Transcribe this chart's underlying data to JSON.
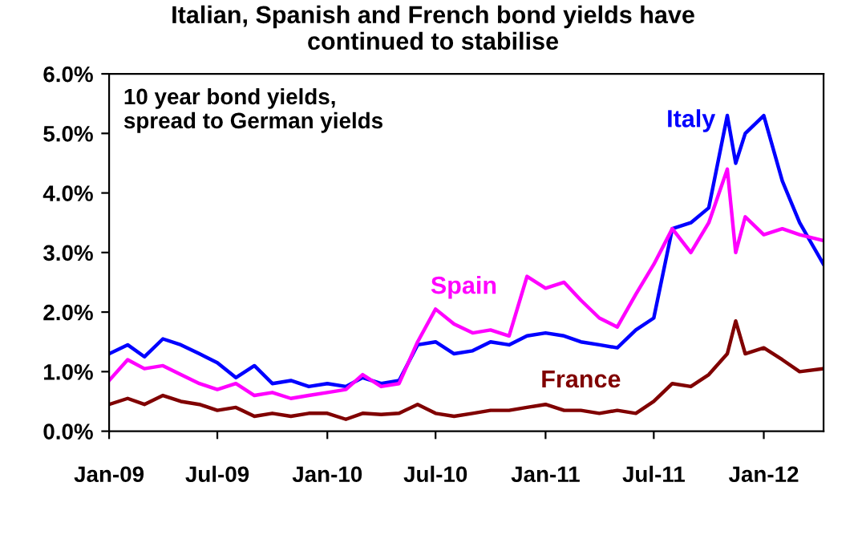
{
  "chart_data": {
    "type": "line",
    "title": "Italian, Spanish and French bond yields have\ncontinued to stabilise",
    "annotations": [
      "10 year bond yields,\nspread to German yields"
    ],
    "x": [
      "2009-01",
      "2009-02",
      "2009-03",
      "2009-04",
      "2009-05",
      "2009-06",
      "2009-07",
      "2009-08",
      "2009-09",
      "2009-10",
      "2009-11",
      "2009-12",
      "2010-01",
      "2010-02",
      "2010-03",
      "2010-04",
      "2010-05",
      "2010-06",
      "2010-07",
      "2010-08",
      "2010-09",
      "2010-10",
      "2010-11",
      "2010-12",
      "2011-01",
      "2011-02",
      "2011-03",
      "2011-04",
      "2011-05",
      "2011-06",
      "2011-07",
      "2011-08",
      "2011-09",
      "2011-10",
      "2011-11",
      "2011-11-15",
      "2011-12",
      "2012-01",
      "2012-02",
      "2012-03",
      "2012-04-10"
    ],
    "series": [
      {
        "name": "Italy",
        "color": "#0000ff",
        "values": [
          1.3,
          1.45,
          1.25,
          1.55,
          1.45,
          1.3,
          1.15,
          0.9,
          1.1,
          0.8,
          0.85,
          0.75,
          0.8,
          0.75,
          0.9,
          0.8,
          0.85,
          1.45,
          1.5,
          1.3,
          1.35,
          1.5,
          1.45,
          1.6,
          1.65,
          1.6,
          1.5,
          1.45,
          1.4,
          1.7,
          1.9,
          3.4,
          3.5,
          3.75,
          5.3,
          4.5,
          5.0,
          5.3,
          4.2,
          3.5,
          2.8
        ]
      },
      {
        "name": "Spain",
        "color": "#ff00ff",
        "values": [
          0.85,
          1.2,
          1.05,
          1.1,
          0.95,
          0.8,
          0.7,
          0.8,
          0.6,
          0.65,
          0.55,
          0.6,
          0.65,
          0.7,
          0.95,
          0.75,
          0.8,
          1.5,
          2.05,
          1.8,
          1.65,
          1.7,
          1.6,
          2.6,
          2.4,
          2.5,
          2.2,
          1.9,
          1.75,
          2.3,
          2.8,
          3.4,
          3.0,
          3.5,
          4.4,
          3.0,
          3.6,
          3.3,
          3.4,
          3.3,
          3.2
        ]
      },
      {
        "name": "France",
        "color": "#800000",
        "values": [
          0.45,
          0.55,
          0.45,
          0.6,
          0.5,
          0.45,
          0.35,
          0.4,
          0.25,
          0.3,
          0.25,
          0.3,
          0.3,
          0.2,
          0.3,
          0.28,
          0.3,
          0.45,
          0.3,
          0.25,
          0.3,
          0.35,
          0.35,
          0.4,
          0.45,
          0.35,
          0.35,
          0.3,
          0.35,
          0.3,
          0.5,
          0.8,
          0.75,
          0.95,
          1.3,
          1.85,
          1.3,
          1.4,
          1.2,
          1.0,
          1.05
        ]
      }
    ],
    "xlim": [
      "2009-01-01",
      "2012-04-10"
    ],
    "xticks": [
      {
        "value": "2009-01-01",
        "label": "Jan-09"
      },
      {
        "value": "2009-07-01",
        "label": "Jul-09"
      },
      {
        "value": "2010-01-01",
        "label": "Jan-10"
      },
      {
        "value": "2010-07-01",
        "label": "Jul-10"
      },
      {
        "value": "2011-01-01",
        "label": "Jan-11"
      },
      {
        "value": "2011-07-01",
        "label": "Jul-11"
      },
      {
        "value": "2012-01-01",
        "label": "Jan-12"
      }
    ],
    "ylim": [
      0,
      6
    ],
    "yticks": [
      {
        "value": 0,
        "label": "0.0%"
      },
      {
        "value": 1,
        "label": "1.0%"
      },
      {
        "value": 2,
        "label": "2.0%"
      },
      {
        "value": 3,
        "label": "3.0%"
      },
      {
        "value": 4,
        "label": "4.0%"
      },
      {
        "value": 5,
        "label": "5.0%"
      },
      {
        "value": 6,
        "label": "6.0%"
      }
    ],
    "grid": false,
    "legend": false,
    "line_style": "solid",
    "marker": "none"
  }
}
